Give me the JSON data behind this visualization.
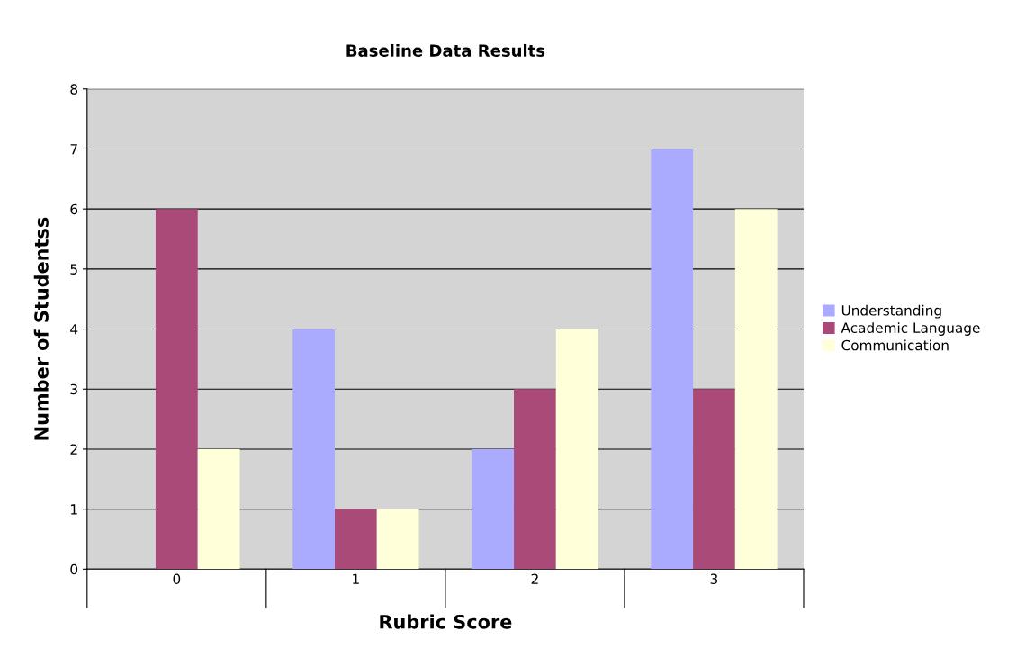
{
  "chart_data": {
    "type": "bar",
    "title": "Baseline Data Results",
    "xlabel": "Rubric Score",
    "ylabel": "Number of Studentss",
    "categories": [
      "0",
      "1",
      "2",
      "3"
    ],
    "series": [
      {
        "name": "Understanding",
        "color": "#aaaaff",
        "values": [
          0,
          4,
          2,
          7
        ]
      },
      {
        "name": "Academic Language",
        "color": "#a94a78",
        "values": [
          6,
          1,
          3,
          3
        ]
      },
      {
        "name": "Communication",
        "color": "#ffffd9",
        "values": [
          2,
          1,
          4,
          6
        ]
      }
    ],
    "ylim": [
      0,
      8
    ],
    "yticks": [
      0,
      1,
      2,
      3,
      4,
      5,
      6,
      7,
      8
    ],
    "grid": "y",
    "legend": "right"
  }
}
